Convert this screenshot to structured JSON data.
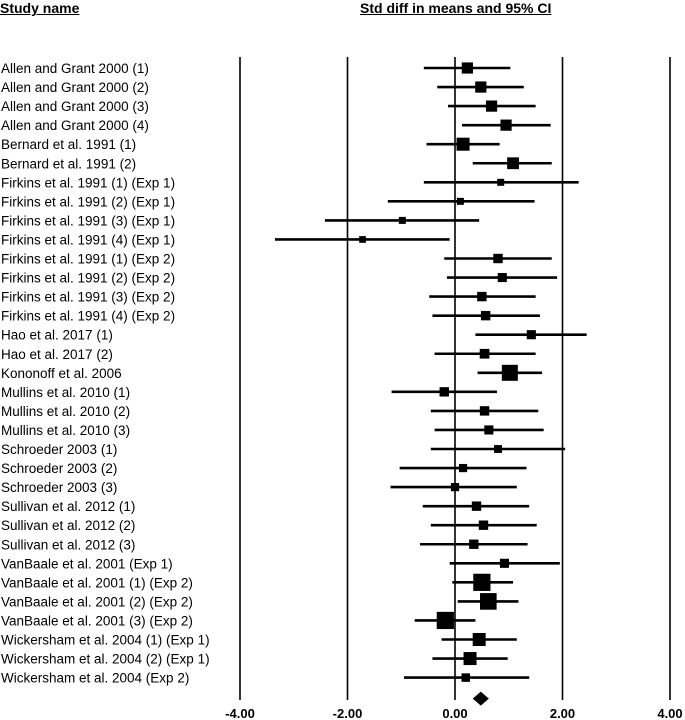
{
  "header": {
    "study_name": "Study name",
    "effect_label": "Std diff in means and 95% CI"
  },
  "chart_data": {
    "type": "forest",
    "xlim": [
      -4,
      4
    ],
    "x_ticks": [
      "-4.00",
      "-2.00",
      "0.00",
      "2.00",
      "4.00"
    ],
    "x_tick_values": [
      -4,
      -2,
      0,
      2,
      4
    ],
    "studies": [
      {
        "label": "Allen and Grant 2000 (1)",
        "mean": 0.23,
        "lower": -0.58,
        "upper": 1.03,
        "weight": 1.2
      },
      {
        "label": "Allen and Grant 2000 (2)",
        "mean": 0.48,
        "lower": -0.33,
        "upper": 1.28,
        "weight": 1.2
      },
      {
        "label": "Allen and Grant 2000 (3)",
        "mean": 0.68,
        "lower": -0.13,
        "upper": 1.5,
        "weight": 1.2
      },
      {
        "label": "Allen and Grant 2000 (4)",
        "mean": 0.95,
        "lower": 0.13,
        "upper": 1.78,
        "weight": 1.2
      },
      {
        "label": "Bernard et al. 1991 (1)",
        "mean": 0.15,
        "lower": -0.53,
        "upper": 0.83,
        "weight": 1.5
      },
      {
        "label": "Bernard et al. 1991 (2)",
        "mean": 1.08,
        "lower": 0.33,
        "upper": 1.8,
        "weight": 1.3
      },
      {
        "label": "Firkins et al. 1991 (1) (Exp 1)",
        "mean": 0.85,
        "lower": -0.58,
        "upper": 2.3,
        "weight": 0.5
      },
      {
        "label": "Firkins et al. 1991 (2) (Exp 1)",
        "mean": 0.1,
        "lower": -1.25,
        "upper": 1.48,
        "weight": 0.5
      },
      {
        "label": "Firkins et al. 1991 (3) (Exp 1)",
        "mean": -0.98,
        "lower": -2.42,
        "upper": 0.45,
        "weight": 0.5
      },
      {
        "label": "Firkins et al. 1991 (4) (Exp 1)",
        "mean": -1.72,
        "lower": -3.35,
        "upper": -0.1,
        "weight": 0.45
      },
      {
        "label": "Firkins et al. 1991 (1) (Exp 2)",
        "mean": 0.8,
        "lower": -0.2,
        "upper": 1.8,
        "weight": 0.9
      },
      {
        "label": "Firkins et al. 1991 (2) (Exp 2)",
        "mean": 0.88,
        "lower": -0.15,
        "upper": 1.9,
        "weight": 0.85
      },
      {
        "label": "Firkins et al. 1991 (3) (Exp 2)",
        "mean": 0.5,
        "lower": -0.48,
        "upper": 1.5,
        "weight": 0.9
      },
      {
        "label": "Firkins et al. 1991 (4) (Exp 2)",
        "mean": 0.57,
        "lower": -0.42,
        "upper": 1.58,
        "weight": 0.9
      },
      {
        "label": "Hao et al. 2017 (1)",
        "mean": 1.42,
        "lower": 0.38,
        "upper": 2.45,
        "weight": 0.85
      },
      {
        "label": "Hao et al. 2017 (2)",
        "mean": 0.55,
        "lower": -0.38,
        "upper": 1.5,
        "weight": 0.95
      },
      {
        "label": "Kononoff et al. 2006",
        "mean": 1.02,
        "lower": 0.42,
        "upper": 1.62,
        "weight": 2.0
      },
      {
        "label": "Mullins et al. 2010 (1)",
        "mean": -0.2,
        "lower": -1.18,
        "upper": 0.78,
        "weight": 0.9
      },
      {
        "label": "Mullins et al. 2010 (2)",
        "mean": 0.55,
        "lower": -0.45,
        "upper": 1.55,
        "weight": 0.9
      },
      {
        "label": "Mullins et al. 2010 (3)",
        "mean": 0.63,
        "lower": -0.38,
        "upper": 1.65,
        "weight": 0.85
      },
      {
        "label": "Schroeder 2003 (1)",
        "mean": 0.8,
        "lower": -0.45,
        "upper": 2.05,
        "weight": 0.65
      },
      {
        "label": "Schroeder 2003 (2)",
        "mean": 0.15,
        "lower": -1.03,
        "upper": 1.33,
        "weight": 0.7
      },
      {
        "label": "Schroeder 2003 (3)",
        "mean": 0.0,
        "lower": -1.2,
        "upper": 1.15,
        "weight": 0.7
      },
      {
        "label": "Sullivan et al. 2012 (1)",
        "mean": 0.4,
        "lower": -0.6,
        "upper": 1.38,
        "weight": 0.9
      },
      {
        "label": "Sullivan et al. 2012 (2)",
        "mean": 0.53,
        "lower": -0.45,
        "upper": 1.52,
        "weight": 0.9
      },
      {
        "label": "Sullivan et al. 2012 (3)",
        "mean": 0.35,
        "lower": -0.65,
        "upper": 1.35,
        "weight": 0.9
      },
      {
        "label": "VanBaale et al. 2001 (Exp 1)",
        "mean": 0.92,
        "lower": -0.1,
        "upper": 1.95,
        "weight": 0.85
      },
      {
        "label": "VanBaale et al. 2001 (1) (Exp 2)",
        "mean": 0.5,
        "lower": -0.05,
        "upper": 1.08,
        "weight": 2.2
      },
      {
        "label": "VanBaale et al. 2001 (2) (Exp 2)",
        "mean": 0.62,
        "lower": 0.05,
        "upper": 1.18,
        "weight": 2.1
      },
      {
        "label": "VanBaale et al. 2001 (3) (Exp 2)",
        "mean": -0.18,
        "lower": -0.75,
        "upper": 0.38,
        "weight": 2.2
      },
      {
        "label": "Wickersham et al. 2004 (1) (Exp 1)",
        "mean": 0.45,
        "lower": -0.25,
        "upper": 1.15,
        "weight": 1.5
      },
      {
        "label": "Wickersham et al. 2004 (2) (Exp 1)",
        "mean": 0.28,
        "lower": -0.42,
        "upper": 0.98,
        "weight": 1.5
      },
      {
        "label": "Wickersham et al. 2004 (Exp 2)",
        "mean": 0.2,
        "lower": -0.95,
        "upper": 1.38,
        "weight": 0.75
      }
    ],
    "summary": {
      "mean": 0.48,
      "lower": 0.33,
      "upper": 0.63
    }
  }
}
